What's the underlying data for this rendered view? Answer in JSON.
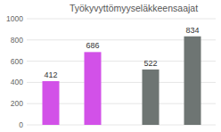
{
  "chart_data": {
    "type": "bar",
    "title": "Työkyvyttömyyseläkkeensaajat",
    "categories": [
      null,
      null,
      null,
      null
    ],
    "values": [
      412,
      686,
      522,
      834
    ],
    "colors": [
      "#d251e8",
      "#d251e8",
      "#6e7573",
      "#6e7573"
    ],
    "ylim": [
      0,
      1000
    ],
    "yticks": [
      0,
      200,
      400,
      600,
      800,
      1000
    ],
    "grid": true,
    "data_labels": true
  }
}
